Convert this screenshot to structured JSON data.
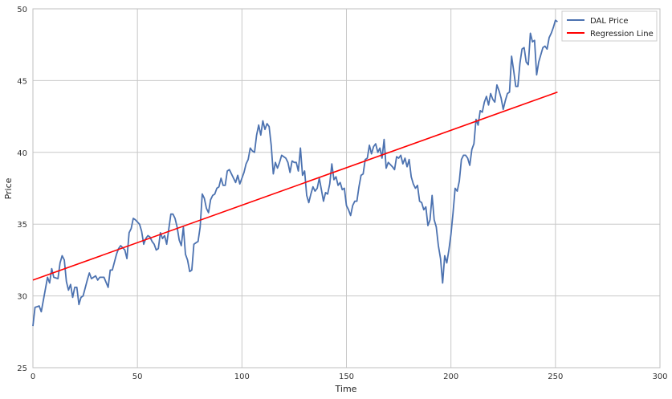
{
  "chart_data": {
    "type": "line",
    "xlabel": "Time",
    "ylabel": "Price",
    "xlim": [
      0,
      300
    ],
    "ylim": [
      25,
      50
    ],
    "xticks": [
      0,
      50,
      100,
      150,
      200,
      250,
      300
    ],
    "yticks": [
      25,
      30,
      35,
      40,
      45,
      50
    ],
    "grid": true,
    "legend_position": "top-right",
    "series": [
      {
        "name": "DAL Price",
        "color": "#4c72b0",
        "keypoints": [
          [
            0,
            27.9
          ],
          [
            1,
            29.2
          ],
          [
            3,
            29.3
          ],
          [
            4,
            28.9
          ],
          [
            6,
            30.5
          ],
          [
            7,
            31.3
          ],
          [
            8,
            30.9
          ],
          [
            9,
            31.9
          ],
          [
            10,
            31.3
          ],
          [
            12,
            31.2
          ],
          [
            13,
            32.3
          ],
          [
            14,
            32.8
          ],
          [
            15,
            32.5
          ],
          [
            16,
            31.0
          ],
          [
            17,
            30.4
          ],
          [
            18,
            30.8
          ],
          [
            19,
            29.9
          ],
          [
            20,
            30.6
          ],
          [
            21,
            30.6
          ],
          [
            22,
            29.4
          ],
          [
            23,
            29.9
          ],
          [
            24,
            30.0
          ],
          [
            26,
            31.1
          ],
          [
            27,
            31.6
          ],
          [
            28,
            31.2
          ],
          [
            30,
            31.4
          ],
          [
            31,
            31.1
          ],
          [
            32,
            31.3
          ],
          [
            34,
            31.3
          ],
          [
            36,
            30.6
          ],
          [
            37,
            31.8
          ],
          [
            38,
            31.8
          ],
          [
            40,
            32.9
          ],
          [
            41,
            33.3
          ],
          [
            42,
            33.5
          ],
          [
            44,
            33.2
          ],
          [
            45,
            32.6
          ],
          [
            46,
            34.4
          ],
          [
            47,
            34.7
          ],
          [
            48,
            35.4
          ],
          [
            49,
            35.3
          ],
          [
            51,
            35.0
          ],
          [
            52,
            34.5
          ],
          [
            53,
            33.6
          ],
          [
            54,
            34.0
          ],
          [
            55,
            34.2
          ],
          [
            56,
            34.1
          ],
          [
            57,
            33.8
          ],
          [
            58,
            33.6
          ],
          [
            59,
            33.2
          ],
          [
            60,
            33.3
          ],
          [
            61,
            34.4
          ],
          [
            62,
            34.0
          ],
          [
            63,
            34.2
          ],
          [
            64,
            33.6
          ],
          [
            66,
            35.7
          ],
          [
            67,
            35.7
          ],
          [
            68,
            35.4
          ],
          [
            69,
            34.8
          ],
          [
            70,
            33.9
          ],
          [
            71,
            33.5
          ],
          [
            72,
            34.8
          ],
          [
            73,
            32.9
          ],
          [
            74,
            32.5
          ],
          [
            75,
            31.7
          ],
          [
            76,
            31.8
          ],
          [
            77,
            33.6
          ],
          [
            78,
            33.7
          ],
          [
            79,
            33.8
          ],
          [
            80,
            34.8
          ],
          [
            81,
            37.1
          ],
          [
            82,
            36.8
          ],
          [
            83,
            36.1
          ],
          [
            84,
            35.8
          ],
          [
            85,
            36.7
          ],
          [
            86,
            37.0
          ],
          [
            87,
            37.1
          ],
          [
            88,
            37.5
          ],
          [
            89,
            37.6
          ],
          [
            90,
            38.2
          ],
          [
            91,
            37.7
          ],
          [
            92,
            37.7
          ],
          [
            93,
            38.7
          ],
          [
            94,
            38.8
          ],
          [
            95,
            38.5
          ],
          [
            96,
            38.2
          ],
          [
            97,
            37.9
          ],
          [
            98,
            38.4
          ],
          [
            99,
            37.8
          ],
          [
            100,
            38.2
          ],
          [
            101,
            38.6
          ],
          [
            102,
            39.2
          ],
          [
            103,
            39.5
          ],
          [
            104,
            40.3
          ],
          [
            105,
            40.1
          ],
          [
            106,
            40.0
          ],
          [
            107,
            41.2
          ],
          [
            108,
            41.9
          ],
          [
            109,
            41.2
          ],
          [
            110,
            42.2
          ],
          [
            111,
            41.6
          ],
          [
            112,
            42.0
          ],
          [
            113,
            41.8
          ],
          [
            114,
            40.5
          ],
          [
            115,
            38.5
          ],
          [
            116,
            39.3
          ],
          [
            117,
            38.9
          ],
          [
            118,
            39.3
          ],
          [
            119,
            39.8
          ],
          [
            121,
            39.6
          ],
          [
            122,
            39.3
          ],
          [
            123,
            38.6
          ],
          [
            124,
            39.4
          ],
          [
            125,
            39.3
          ],
          [
            126,
            39.3
          ],
          [
            127,
            38.7
          ],
          [
            128,
            40.3
          ],
          [
            129,
            38.4
          ],
          [
            130,
            38.7
          ],
          [
            131,
            37.0
          ],
          [
            132,
            36.5
          ],
          [
            133,
            37.1
          ],
          [
            134,
            37.6
          ],
          [
            135,
            37.3
          ],
          [
            136,
            37.5
          ],
          [
            137,
            38.2
          ],
          [
            138,
            37.4
          ],
          [
            139,
            36.6
          ],
          [
            140,
            37.2
          ],
          [
            141,
            37.1
          ],
          [
            142,
            37.8
          ],
          [
            143,
            39.2
          ],
          [
            144,
            38.1
          ],
          [
            145,
            38.3
          ],
          [
            146,
            37.7
          ],
          [
            147,
            37.9
          ],
          [
            148,
            37.4
          ],
          [
            149,
            37.5
          ],
          [
            150,
            36.3
          ],
          [
            151,
            36.0
          ],
          [
            152,
            35.6
          ],
          [
            153,
            36.3
          ],
          [
            154,
            36.6
          ],
          [
            155,
            36.6
          ],
          [
            156,
            37.6
          ],
          [
            157,
            38.4
          ],
          [
            158,
            38.5
          ],
          [
            159,
            39.5
          ],
          [
            160,
            39.6
          ],
          [
            161,
            40.5
          ],
          [
            162,
            39.9
          ],
          [
            163,
            40.4
          ],
          [
            164,
            40.6
          ],
          [
            165,
            40.0
          ],
          [
            166,
            40.3
          ],
          [
            167,
            39.6
          ],
          [
            168,
            40.9
          ],
          [
            169,
            38.9
          ],
          [
            170,
            39.3
          ],
          [
            172,
            39.0
          ],
          [
            173,
            38.8
          ],
          [
            174,
            39.7
          ],
          [
            175,
            39.6
          ],
          [
            176,
            39.8
          ],
          [
            177,
            39.2
          ],
          [
            178,
            39.6
          ],
          [
            179,
            39.0
          ],
          [
            180,
            39.5
          ],
          [
            181,
            38.3
          ],
          [
            182,
            37.8
          ],
          [
            183,
            37.5
          ],
          [
            184,
            37.7
          ],
          [
            185,
            36.6
          ],
          [
            186,
            36.5
          ],
          [
            187,
            36.0
          ],
          [
            188,
            36.2
          ],
          [
            189,
            34.9
          ],
          [
            190,
            35.3
          ],
          [
            191,
            37.0
          ],
          [
            192,
            35.3
          ],
          [
            193,
            34.8
          ],
          [
            194,
            33.5
          ],
          [
            195,
            32.6
          ],
          [
            196,
            30.9
          ],
          [
            197,
            32.8
          ],
          [
            198,
            32.3
          ],
          [
            199,
            33.2
          ],
          [
            200,
            34.3
          ],
          [
            201,
            35.8
          ],
          [
            202,
            37.5
          ],
          [
            203,
            37.3
          ],
          [
            204,
            38.0
          ],
          [
            205,
            39.5
          ],
          [
            206,
            39.8
          ],
          [
            207,
            39.8
          ],
          [
            208,
            39.6
          ],
          [
            209,
            39.1
          ],
          [
            210,
            40.2
          ],
          [
            211,
            40.6
          ],
          [
            212,
            42.3
          ],
          [
            213,
            41.9
          ],
          [
            214,
            42.9
          ],
          [
            215,
            42.8
          ],
          [
            216,
            43.5
          ],
          [
            217,
            43.9
          ],
          [
            218,
            43.3
          ],
          [
            219,
            44.1
          ],
          [
            220,
            43.7
          ],
          [
            221,
            43.5
          ],
          [
            222,
            44.7
          ],
          [
            223,
            44.3
          ],
          [
            224,
            43.8
          ],
          [
            225,
            43.0
          ],
          [
            226,
            43.6
          ],
          [
            227,
            44.1
          ],
          [
            228,
            44.2
          ],
          [
            229,
            46.7
          ],
          [
            230,
            45.7
          ],
          [
            231,
            44.6
          ],
          [
            232,
            44.6
          ],
          [
            233,
            46.2
          ],
          [
            234,
            47.2
          ],
          [
            235,
            47.3
          ],
          [
            236,
            46.3
          ],
          [
            237,
            46.1
          ],
          [
            238,
            48.3
          ],
          [
            239,
            47.7
          ],
          [
            240,
            47.8
          ],
          [
            241,
            45.4
          ],
          [
            242,
            46.3
          ],
          [
            243,
            46.8
          ],
          [
            244,
            47.3
          ],
          [
            245,
            47.4
          ],
          [
            246,
            47.2
          ],
          [
            247,
            48.0
          ],
          [
            248,
            48.3
          ],
          [
            249,
            48.7
          ],
          [
            250,
            49.2
          ],
          [
            251,
            49.1
          ]
        ]
      },
      {
        "name": "Regression Line",
        "color": "#ff0000",
        "keypoints": [
          [
            0,
            31.1
          ],
          [
            251,
            44.2
          ]
        ]
      }
    ]
  }
}
